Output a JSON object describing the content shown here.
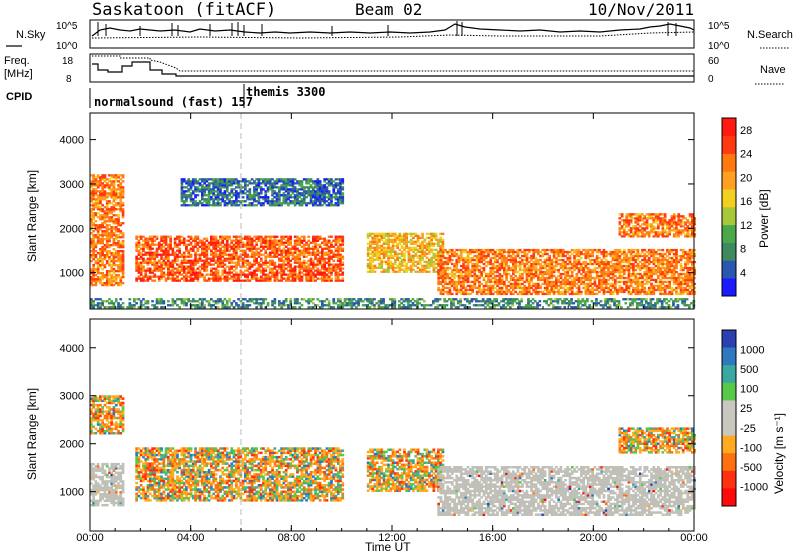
{
  "header": {
    "station": "Saskatoon (fitACF)",
    "beam": "Beam 02",
    "date": "10/Nov/2011"
  },
  "top_panels": {
    "nsky_label": "N.Sky",
    "nsky_ticks": [
      "10^5",
      "10^0"
    ],
    "nsearch_label": "N.Search",
    "nsearch_ticks": [
      "10^5",
      "10^0"
    ],
    "freq_label": "Freq.",
    "freq_unit": "[MHz]",
    "freq_ticks": [
      "18",
      "8"
    ],
    "nave_label": "Nave",
    "nave_ticks": [
      "60",
      "0"
    ],
    "cpid_label": "CPID",
    "cpid_entries": [
      "normalsound (fast) 157",
      "themis 3300"
    ]
  },
  "colors": {
    "power_scale": [
      "#1a1aff",
      "#2a58b0",
      "#3e8a5e",
      "#4aa84a",
      "#a8c83a",
      "#f0d020",
      "#ffa020",
      "#ff7810",
      "#ff3a10",
      "#ff1a10"
    ],
    "velocity_scale": [
      "#2a3fb0",
      "#2f78c0",
      "#3aa8a0",
      "#58c84a",
      "#c8c8c0",
      "#c8c8c0",
      "#ffaa20",
      "#ff7010",
      "#ff3010",
      "#ff0a0a"
    ],
    "ground_scatter": "#c0c0b8"
  },
  "chart_data": [
    {
      "type": "heatmap",
      "name": "power",
      "ylabel": "Slant Range [km]",
      "yticks": [
        "1000",
        "2000",
        "3000",
        "4000"
      ],
      "ylim": [
        180,
        4600
      ],
      "xlim": [
        0,
        24
      ],
      "colorbar_label": "Power [dB]",
      "colorbar_ticks": [
        "4",
        "8",
        "12",
        "16",
        "20",
        "24",
        "28"
      ],
      "colorbar_range": [
        0,
        30
      ],
      "echo_regions": [
        {
          "t0": 0.0,
          "t1": 1.3,
          "r0": 700,
          "r1": 3200,
          "level": 22
        },
        {
          "t0": 1.8,
          "t1": 10.0,
          "r0": 800,
          "r1": 1800,
          "level": 24
        },
        {
          "t0": 3.6,
          "t1": 10.0,
          "r0": 2500,
          "r1": 3100,
          "level": 6
        },
        {
          "t0": 11.0,
          "t1": 14.0,
          "r0": 1000,
          "r1": 1900,
          "level": 18
        },
        {
          "t0": 13.8,
          "t1": 24.0,
          "r0": 500,
          "r1": 1500,
          "level": 22
        },
        {
          "t0": 21.0,
          "t1": 24.0,
          "r0": 1800,
          "r1": 2300,
          "level": 22
        },
        {
          "t0": 0.0,
          "t1": 24.0,
          "r0": 200,
          "r1": 400,
          "level": 8
        }
      ]
    },
    {
      "type": "heatmap",
      "name": "velocity",
      "ylabel": "Slant Range [km]",
      "xlabel": "Time UT",
      "xticks": [
        "00:00",
        "04:00",
        "08:00",
        "12:00",
        "16:00",
        "20:00",
        "00:00"
      ],
      "yticks": [
        "1000",
        "2000",
        "3000",
        "4000"
      ],
      "ylim": [
        180,
        4600
      ],
      "xlim": [
        0,
        24
      ],
      "colorbar_label": "Velocity [m s⁻¹]",
      "colorbar_ticks": [
        "1000",
        "500",
        "100",
        "25",
        "-25",
        "-100",
        "-500",
        "-1000"
      ],
      "echo_regions": [
        {
          "t0": 0.0,
          "t1": 1.3,
          "r0": 700,
          "r1": 1600,
          "kind": "ground"
        },
        {
          "t0": 0.0,
          "t1": 1.3,
          "r0": 2200,
          "r1": 3000,
          "kind": "velocity"
        },
        {
          "t0": 1.8,
          "t1": 10.0,
          "r0": 800,
          "r1": 1900,
          "kind": "velocity"
        },
        {
          "t0": 11.0,
          "t1": 14.0,
          "r0": 1000,
          "r1": 1900,
          "kind": "velocity"
        },
        {
          "t0": 13.8,
          "t1": 24.0,
          "r0": 500,
          "r1": 1500,
          "kind": "ground"
        },
        {
          "t0": 21.0,
          "t1": 24.0,
          "r0": 1800,
          "r1": 2300,
          "kind": "velocity"
        }
      ]
    }
  ]
}
